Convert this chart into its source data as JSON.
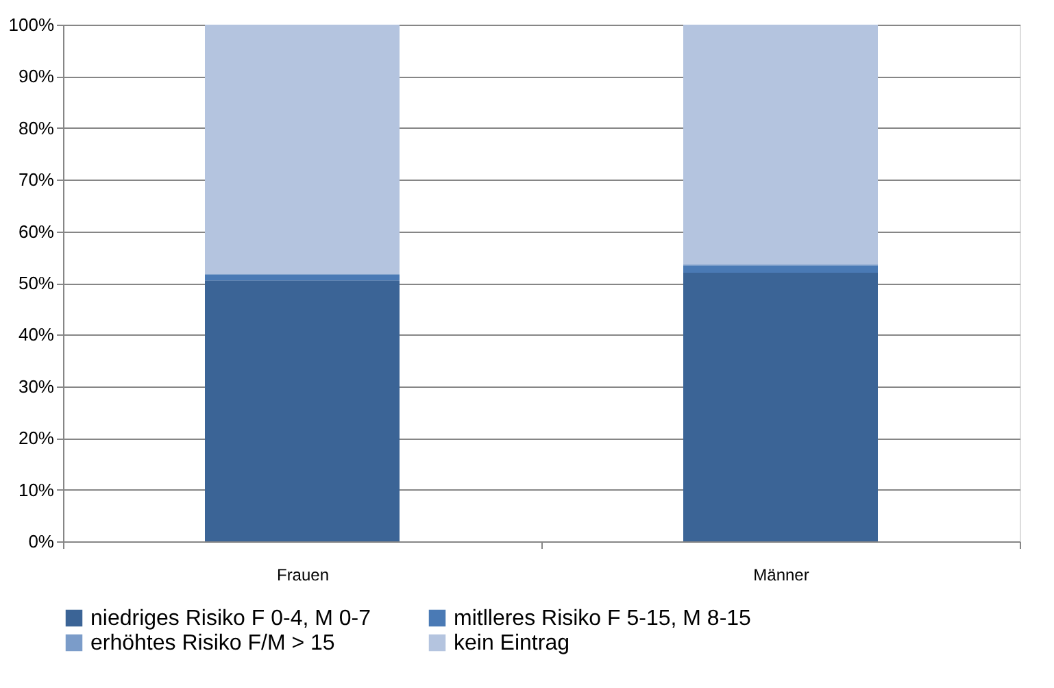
{
  "chart_data": {
    "type": "bar",
    "stacked": true,
    "categories": [
      "Frauen",
      "Männer"
    ],
    "series": [
      {
        "name": "niedriges Risiko F 0-4, M 0-7",
        "color": "#3b6496",
        "values": [
          50.5,
          52.0
        ]
      },
      {
        "name": "mitlleres Risiko F 5-15, M 8-15",
        "color": "#4a7ab5",
        "values": [
          1.2,
          1.4
        ]
      },
      {
        "name": "erhöhtes Risiko F/M > 15",
        "color": "#7b9cc9",
        "values": [
          0.0,
          0.2
        ]
      },
      {
        "name": "kein Eintrag",
        "color": "#b4c4df",
        "values": [
          48.3,
          46.4
        ]
      }
    ],
    "ylim": [
      0,
      100
    ],
    "yticks": [
      {
        "value": 0,
        "label": "0%"
      },
      {
        "value": 10,
        "label": "10%"
      },
      {
        "value": 20,
        "label": "20%"
      },
      {
        "value": 30,
        "label": "30%"
      },
      {
        "value": 40,
        "label": "40%"
      },
      {
        "value": 50,
        "label": "50%"
      },
      {
        "value": 60,
        "label": "60%"
      },
      {
        "value": 70,
        "label": "70%"
      },
      {
        "value": 80,
        "label": "80%"
      },
      {
        "value": 90,
        "label": "90%"
      },
      {
        "value": 100,
        "label": "100%"
      }
    ],
    "grid": "y",
    "legend": "bottom"
  }
}
